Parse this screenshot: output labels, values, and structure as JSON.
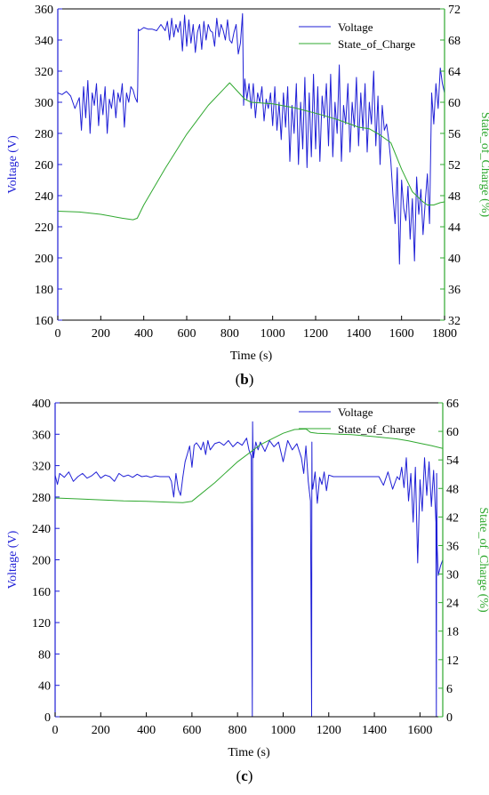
{
  "chart_data": [
    {
      "type": "line",
      "panel_label": "(b)",
      "xlabel": "Time (s)",
      "ylabel_left": "Voltage (V)",
      "ylabel_right": "State_of_Charge (%)",
      "xlim": [
        0,
        1800
      ],
      "ylim_left": [
        160,
        360
      ],
      "ylim_right": [
        32,
        72
      ],
      "xticks": [
        0,
        200,
        400,
        600,
        800,
        1000,
        1200,
        1400,
        1600,
        1800
      ],
      "yticks_left": [
        160,
        180,
        200,
        220,
        240,
        260,
        280,
        300,
        320,
        340,
        360
      ],
      "yticks_right": [
        32,
        36,
        40,
        44,
        48,
        52,
        56,
        60,
        64,
        68,
        72
      ],
      "legend_position": "top-right",
      "colors": {
        "voltage": "#1f1fd6",
        "soc": "#2fa82f",
        "voltage_axis": "#1f1fd6",
        "soc_axis": "#2fa82f"
      },
      "series": [
        {
          "name": "Voltage",
          "axis": "left",
          "x": [
            0,
            20,
            40,
            60,
            80,
            100,
            110,
            120,
            130,
            140,
            150,
            160,
            170,
            180,
            190,
            200,
            210,
            220,
            230,
            240,
            250,
            260,
            270,
            280,
            290,
            300,
            310,
            320,
            330,
            340,
            350,
            360,
            370,
            372,
            375,
            380,
            400,
            420,
            440,
            460,
            480,
            500,
            510,
            520,
            530,
            540,
            550,
            560,
            570,
            580,
            590,
            600,
            610,
            620,
            630,
            640,
            650,
            660,
            670,
            680,
            690,
            700,
            710,
            720,
            730,
            740,
            750,
            760,
            770,
            780,
            790,
            800,
            810,
            820,
            830,
            840,
            850,
            860,
            865,
            870,
            880,
            890,
            900,
            910,
            920,
            930,
            940,
            950,
            960,
            970,
            980,
            990,
            1000,
            1010,
            1020,
            1030,
            1040,
            1050,
            1060,
            1070,
            1080,
            1090,
            1100,
            1110,
            1120,
            1130,
            1140,
            1150,
            1160,
            1170,
            1180,
            1190,
            1200,
            1210,
            1220,
            1230,
            1240,
            1250,
            1260,
            1270,
            1280,
            1290,
            1300,
            1310,
            1320,
            1330,
            1340,
            1350,
            1360,
            1370,
            1380,
            1390,
            1400,
            1410,
            1420,
            1430,
            1440,
            1450,
            1460,
            1470,
            1480,
            1490,
            1500,
            1510,
            1520,
            1530,
            1540,
            1550,
            1560,
            1570,
            1580,
            1590,
            1600,
            1610,
            1620,
            1630,
            1640,
            1650,
            1660,
            1670,
            1680,
            1690,
            1700,
            1710,
            1720,
            1730,
            1740,
            1750,
            1760,
            1770,
            1780,
            1790,
            1800
          ],
          "values": [
            306,
            305,
            307,
            304,
            296,
            303,
            282,
            310,
            290,
            314,
            280,
            306,
            298,
            312,
            285,
            305,
            292,
            310,
            280,
            302,
            296,
            308,
            290,
            306,
            300,
            312,
            284,
            306,
            300,
            310,
            308,
            303,
            300,
            310,
            347,
            346,
            348,
            347,
            347,
            346,
            350,
            346,
            352,
            340,
            354,
            342,
            350,
            345,
            352,
            333,
            356,
            336,
            353,
            338,
            350,
            332,
            345,
            350,
            334,
            352,
            340,
            350,
            346,
            345,
            336,
            354,
            342,
            350,
            346,
            340,
            353,
            340,
            338,
            345,
            350,
            331,
            338,
            357,
            298,
            315,
            302,
            312,
            296,
            312,
            290,
            306,
            300,
            310,
            288,
            302,
            296,
            306,
            285,
            310,
            282,
            300,
            276,
            306,
            284,
            310,
            262,
            298,
            280,
            312,
            260,
            300,
            270,
            316,
            258,
            306,
            265,
            318,
            270,
            310,
            262,
            304,
            290,
            312,
            272,
            318,
            265,
            300,
            280,
            324,
            262,
            298,
            286,
            312,
            268,
            300,
            284,
            316,
            272,
            306,
            282,
            312,
            268,
            300,
            286,
            320,
            272,
            304,
            260,
            298,
            282,
            286,
            276,
            262,
            240,
            222,
            258,
            196,
            250,
            232,
            224,
            246,
            212,
            238,
            198,
            252,
            228,
            244,
            215,
            236,
            254,
            222,
            306,
            286,
            312,
            296,
            322,
            312,
            306
          ],
          "values_note": ""
        },
        {
          "name": "State_of_Charge",
          "axis": "right",
          "x": [
            0,
            100,
            200,
            300,
            350,
            370,
            400,
            500,
            600,
            700,
            800,
            870,
            900,
            1000,
            1100,
            1200,
            1300,
            1400,
            1450,
            1500,
            1550,
            1600,
            1650,
            1700,
            1720,
            1750,
            1780,
            1800
          ],
          "values": [
            46,
            45.9,
            45.6,
            45.1,
            44.9,
            45.1,
            46.8,
            51.5,
            55.9,
            59.6,
            62.5,
            60.4,
            60,
            59.8,
            59.3,
            58.6,
            57.8,
            56.8,
            56.6,
            55.8,
            54.8,
            51.4,
            48.5,
            47.2,
            46.8,
            46.8,
            47.1,
            47.2
          ]
        }
      ]
    },
    {
      "type": "line",
      "panel_label": "(c)",
      "xlabel": "Time (s)",
      "ylabel_left": "Voltage (V)",
      "ylabel_right": "State_of_Charge (%)",
      "xlim": [
        0,
        1700
      ],
      "ylim_left": [
        0,
        400
      ],
      "ylim_right": [
        0,
        66
      ],
      "xticks": [
        0,
        200,
        400,
        600,
        800,
        1000,
        1200,
        1400,
        1600
      ],
      "yticks_left": [
        0,
        40,
        80,
        120,
        160,
        200,
        240,
        280,
        320,
        360,
        400
      ],
      "yticks_right": [
        0,
        6,
        12,
        18,
        24,
        30,
        36,
        42,
        48,
        54,
        60,
        66
      ],
      "legend_position": "top-right",
      "colors": {
        "voltage": "#1f1fd6",
        "soc": "#2fa82f",
        "voltage_axis": "#1f1fd6",
        "soc_axis": "#2fa82f"
      },
      "series": [
        {
          "name": "Voltage",
          "axis": "left",
          "x": [
            0,
            10,
            20,
            40,
            60,
            80,
            100,
            120,
            140,
            160,
            180,
            200,
            220,
            240,
            260,
            280,
            300,
            320,
            340,
            360,
            380,
            400,
            420,
            440,
            460,
            480,
            500,
            510,
            520,
            530,
            540,
            550,
            560,
            570,
            580,
            590,
            600,
            610,
            620,
            630,
            640,
            650,
            660,
            670,
            680,
            700,
            720,
            740,
            760,
            780,
            800,
            820,
            840,
            850,
            860,
            865,
            866,
            867,
            870,
            880,
            890,
            900,
            920,
            940,
            960,
            980,
            1000,
            1020,
            1040,
            1060,
            1080,
            1090,
            1100,
            1110,
            1120,
            1125,
            1126,
            1127,
            1130,
            1140,
            1150,
            1160,
            1170,
            1180,
            1190,
            1200,
            1220,
            1240,
            1260,
            1280,
            1300,
            1320,
            1340,
            1360,
            1380,
            1400,
            1420,
            1440,
            1460,
            1480,
            1500,
            1510,
            1520,
            1530,
            1540,
            1550,
            1560,
            1570,
            1580,
            1590,
            1600,
            1610,
            1620,
            1630,
            1640,
            1650,
            1660,
            1670,
            1672,
            1673,
            1675,
            1680,
            1690,
            1700
          ],
          "values": [
            308,
            296,
            310,
            305,
            312,
            300,
            306,
            310,
            304,
            307,
            312,
            304,
            308,
            306,
            300,
            310,
            306,
            308,
            305,
            309,
            306,
            307,
            305,
            307,
            306,
            306,
            306,
            300,
            280,
            310,
            290,
            282,
            305,
            325,
            335,
            345,
            318,
            346,
            349,
            345,
            340,
            350,
            334,
            352,
            340,
            348,
            350,
            346,
            352,
            344,
            350,
            346,
            355,
            340,
            332,
            0,
            376,
            350,
            330,
            350,
            340,
            350,
            338,
            352,
            344,
            350,
            325,
            352,
            340,
            348,
            330,
            310,
            345,
            300,
            275,
            0,
            350,
            300,
            290,
            312,
            272,
            305,
            296,
            312,
            288,
            308,
            306,
            306,
            306,
            306,
            306,
            306,
            306,
            306,
            306,
            306,
            306,
            295,
            312,
            290,
            306,
            302,
            318,
            292,
            330,
            275,
            310,
            248,
            318,
            196,
            302,
            262,
            330,
            282,
            325,
            268,
            314,
            248,
            0,
            310,
            220,
            180,
            192,
            200
          ],
          "values_note": ""
        },
        {
          "name": "State_of_Charge",
          "axis": "right",
          "x": [
            0,
            100,
            200,
            300,
            400,
            500,
            560,
            600,
            700,
            800,
            900,
            1000,
            1050,
            1100,
            1120,
            1150,
            1200,
            1300,
            1400,
            1500,
            1550,
            1600,
            1650,
            1700
          ],
          "values": [
            46,
            45.8,
            45.6,
            45.4,
            45.3,
            45.1,
            45,
            45.3,
            49.2,
            53.6,
            57.2,
            59.6,
            60.4,
            60.5,
            59.8,
            59.6,
            59.5,
            59.3,
            58.9,
            58.4,
            58,
            57.5,
            57,
            56.4
          ]
        }
      ]
    }
  ]
}
